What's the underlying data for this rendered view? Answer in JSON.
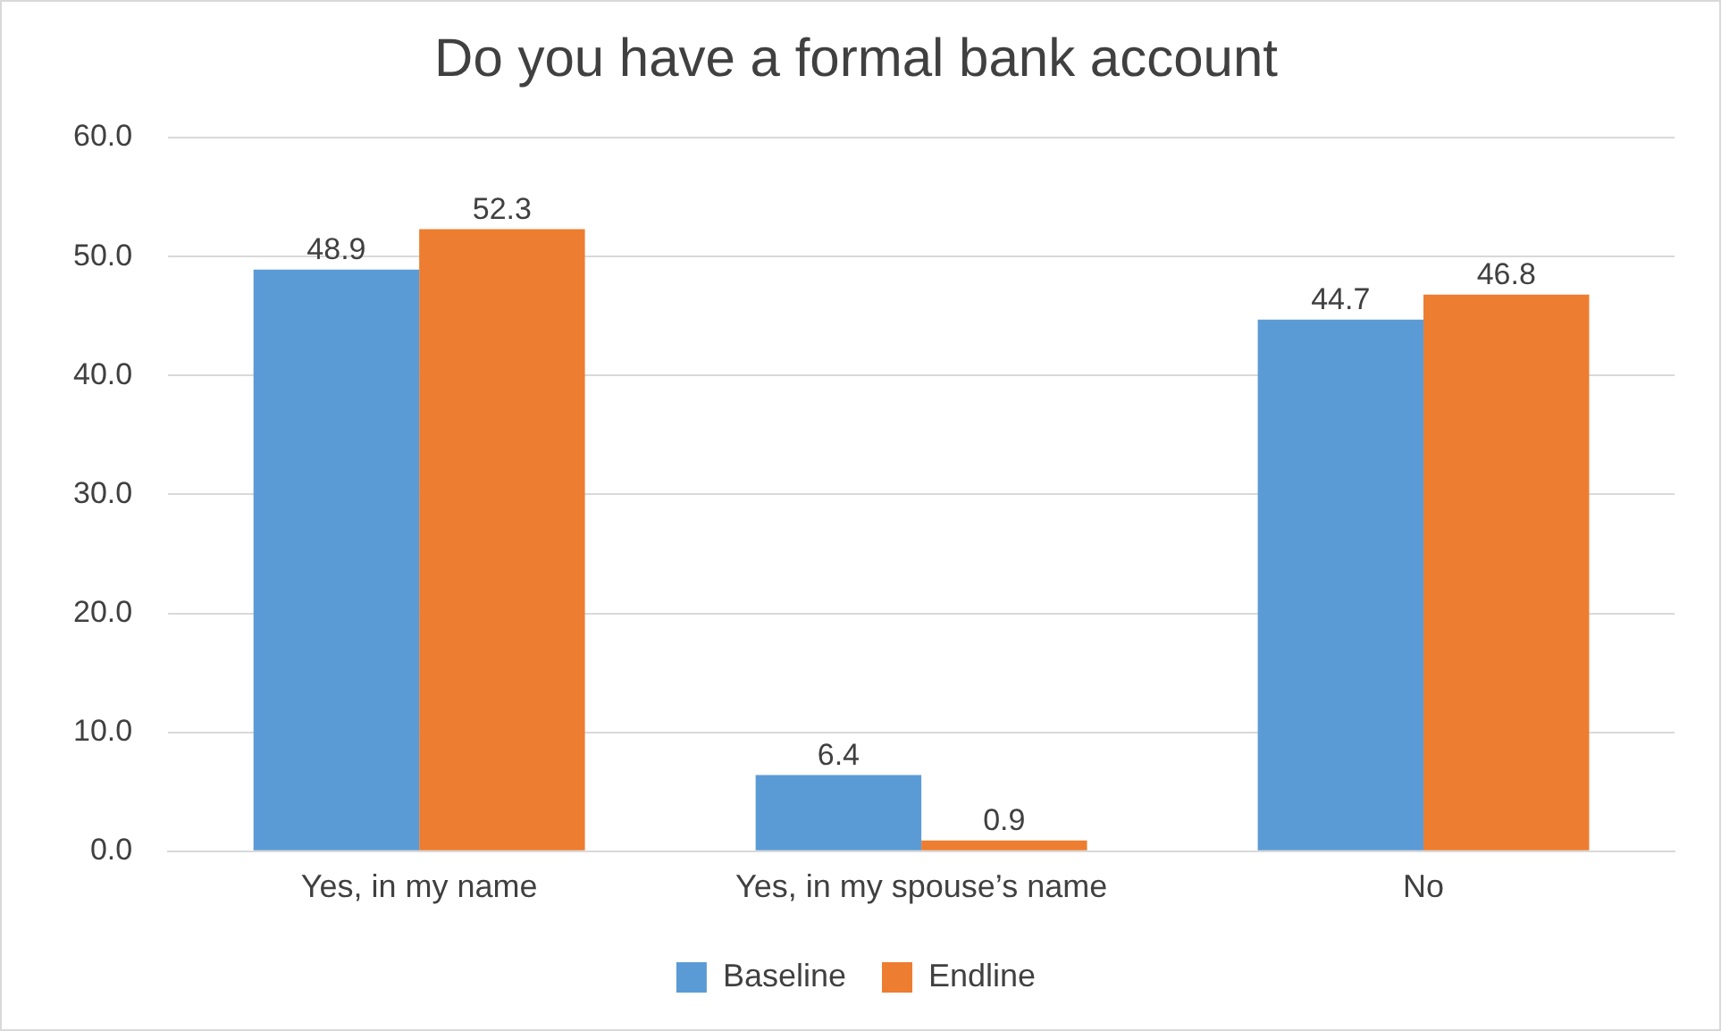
{
  "chart_data": {
    "type": "bar",
    "title": "Do you have a formal bank account",
    "categories": [
      "Yes, in my name",
      "Yes, in my spouse’s name",
      "No"
    ],
    "series": [
      {
        "name": "Baseline",
        "color": "#5b9bd5",
        "values": [
          48.9,
          6.4,
          44.7
        ]
      },
      {
        "name": "Endline",
        "color": "#ed7d31",
        "values": [
          52.3,
          0.9,
          46.8
        ]
      }
    ],
    "ylim": [
      0,
      60
    ],
    "yticks": [
      {
        "value": 0,
        "label": "0.0"
      },
      {
        "value": 10,
        "label": "10.0"
      },
      {
        "value": 20,
        "label": "20.0"
      },
      {
        "value": 30,
        "label": "30.0"
      },
      {
        "value": 40,
        "label": "40.0"
      },
      {
        "value": 50,
        "label": "50.0"
      },
      {
        "value": 60,
        "label": "60.0"
      }
    ],
    "grid": "y",
    "legend": "bottom",
    "data_labels": true
  }
}
